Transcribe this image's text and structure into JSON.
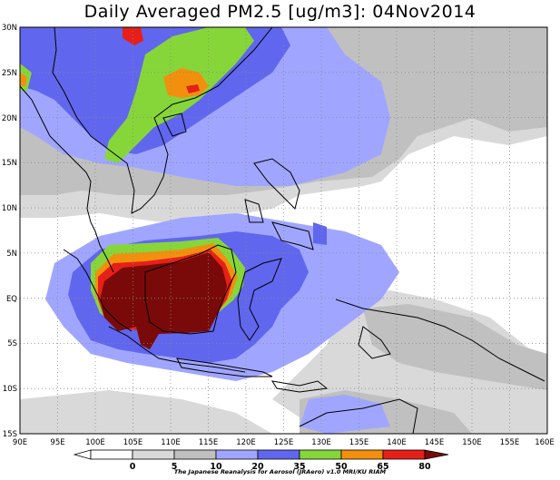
{
  "title": "Daily Averaged PM2.5 [ug/m3]: 04Nov2014",
  "map": {
    "lon_range": [
      90,
      160
    ],
    "lat_range": [
      -15,
      30
    ],
    "lon_labels": [
      "90E",
      "95E",
      "100E",
      "105E",
      "110E",
      "115E",
      "120E",
      "125E",
      "130E",
      "135E",
      "140E",
      "145E",
      "150E",
      "155E",
      "160E"
    ],
    "lat_labels": [
      "30N",
      "25N",
      "20N",
      "15N",
      "10N",
      "5N",
      "EQ",
      "5S",
      "10S",
      "15S"
    ],
    "gridlines": "dotted"
  },
  "colorbar": {
    "levels": [
      "0",
      "5",
      "10",
      "20",
      "35",
      "50",
      "65",
      "80"
    ],
    "colors": [
      "#ffffff",
      "#d9d9d9",
      "#c0c0c0",
      "#a0a6ff",
      "#6066ee",
      "#86d63a",
      "#f2900e",
      "#e62018",
      "#7a0a0a"
    ]
  },
  "credit": "The Japanese Reanalysis for Aerosol (JRAero) v1.0 MRI/KU RIAM"
}
